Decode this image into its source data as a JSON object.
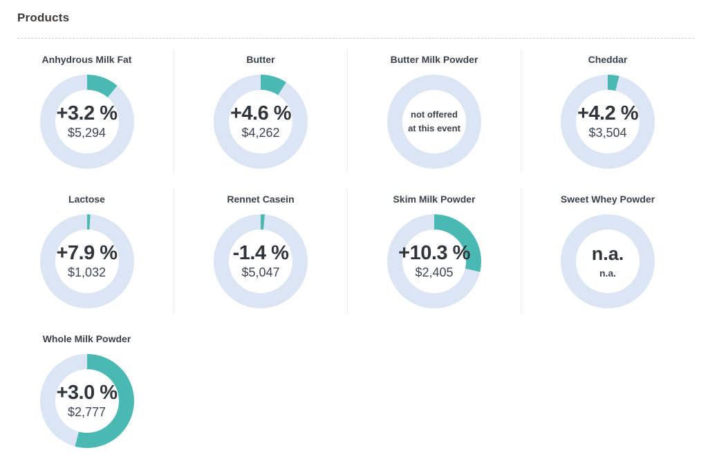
{
  "header": {
    "title": "Products"
  },
  "colors": {
    "accent_teal": "#4bb9b3",
    "ring_light": "#dbe5f3",
    "header_text": "#3d3936",
    "name_text": "#3a4149",
    "change_text": "#2f353b",
    "value_text": "#3e4553",
    "divider": "#ededed",
    "dashed_rule": "#c9c9c9"
  },
  "products": [
    {
      "kind": "value",
      "name": "Anhydrous Milk Fat",
      "change": "+3.2 %",
      "value": "$5,294",
      "arc_deg": 40
    },
    {
      "kind": "value",
      "name": "Butter",
      "change": "+4.6 %",
      "value": "$4,262",
      "arc_deg": 33
    },
    {
      "kind": "note",
      "name": "Butter Milk Powder",
      "note_line1": "not offered",
      "note_line2": "at this event",
      "arc_deg": 0
    },
    {
      "kind": "value",
      "name": "Cheddar",
      "change": "+4.2 %",
      "value": "$3,504",
      "arc_deg": 14
    },
    {
      "kind": "value",
      "name": "Lactose",
      "change": "+7.9 %",
      "value": "$1,032",
      "arc_deg": 4
    },
    {
      "kind": "value",
      "name": "Rennet Casein",
      "change": "-1.4 %",
      "value": "$5,047",
      "arc_deg": 5
    },
    {
      "kind": "value",
      "name": "Skim Milk Powder",
      "change": "+10.3 %",
      "value": "$2,405",
      "arc_deg": 103
    },
    {
      "kind": "na",
      "name": "Sweet Whey Powder",
      "change": "n.a.",
      "value": "n.a.",
      "arc_deg": 0
    },
    {
      "kind": "value",
      "name": "Whole Milk Powder",
      "change": "+3.0 %",
      "value": "$2,777",
      "arc_deg": 195
    }
  ],
  "chart_data": {
    "type": "pie",
    "subtype": "donut-gauge-grid",
    "title": "Products",
    "legend_position": "none",
    "items": [
      {
        "label": "Anhydrous Milk Fat",
        "change_pct": 3.2,
        "price": "$5,294",
        "arc_deg": 40
      },
      {
        "label": "Butter",
        "change_pct": 4.6,
        "price": "$4,262",
        "arc_deg": 33
      },
      {
        "label": "Butter Milk Powder",
        "change_pct": null,
        "price": null,
        "arc_deg": 0,
        "note": "not offered at this event"
      },
      {
        "label": "Cheddar",
        "change_pct": 4.2,
        "price": "$3,504",
        "arc_deg": 14
      },
      {
        "label": "Lactose",
        "change_pct": 7.9,
        "price": "$1,032",
        "arc_deg": 4
      },
      {
        "label": "Rennet Casein",
        "change_pct": -1.4,
        "price": "$5,047",
        "arc_deg": 5
      },
      {
        "label": "Skim Milk Powder",
        "change_pct": 10.3,
        "price": "$2,405",
        "arc_deg": 103
      },
      {
        "label": "Sweet Whey Powder",
        "change_pct": null,
        "price": null,
        "arc_deg": 0,
        "note": "n.a."
      },
      {
        "label": "Whole Milk Powder",
        "change_pct": 3.0,
        "price": "$2,777",
        "arc_deg": 195
      }
    ],
    "colors": {
      "filled_arc": "#4bb9b3",
      "ring_background": "#dbe5f3"
    }
  }
}
